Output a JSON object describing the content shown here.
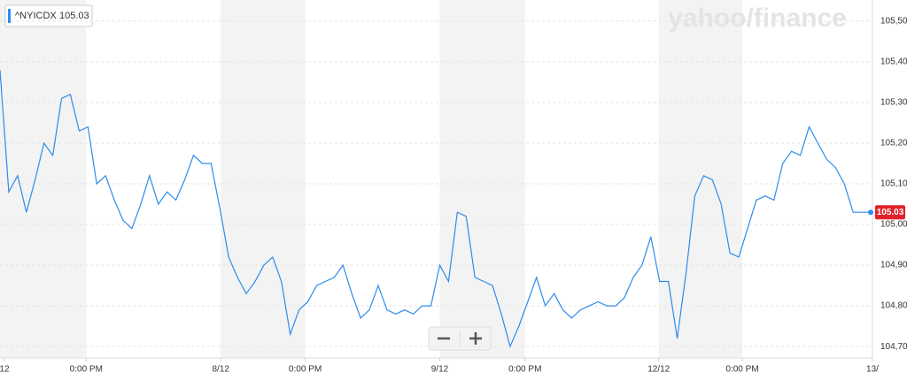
{
  "chart_data": {
    "type": "line",
    "watermark": "yahoo/finance",
    "last_price": 105.03,
    "series": [
      {
        "name": "^NYICDX",
        "color": "#2d8ceb",
        "values": [
          105.38,
          105.08,
          105.12,
          105.03,
          105.11,
          105.2,
          105.17,
          105.31,
          105.32,
          105.23,
          105.24,
          105.1,
          105.12,
          105.06,
          105.01,
          104.99,
          105.05,
          105.12,
          105.05,
          105.08,
          105.06,
          105.11,
          105.17,
          105.15,
          105.15,
          105.04,
          104.92,
          104.87,
          104.83,
          104.86,
          104.9,
          104.92,
          104.86,
          104.73,
          104.79,
          104.81,
          104.85,
          104.86,
          104.87,
          104.9,
          104.83,
          104.77,
          104.79,
          104.85,
          104.79,
          104.78,
          104.79,
          104.78,
          104.8,
          104.8,
          104.9,
          104.86,
          105.03,
          105.02,
          104.87,
          104.86,
          104.85,
          104.78,
          104.7,
          104.75,
          104.81,
          104.87,
          104.8,
          104.83,
          104.79,
          104.77,
          104.79,
          104.8,
          104.81,
          104.8,
          104.8,
          104.82,
          104.87,
          104.9,
          104.97,
          104.86,
          104.86,
          104.72,
          104.88,
          105.07,
          105.12,
          105.11,
          105.05,
          104.93,
          104.92,
          104.99,
          105.06,
          105.07,
          105.06,
          105.15,
          105.18,
          105.17,
          105.24,
          105.2,
          105.16,
          105.14,
          105.1,
          105.03,
          105.03,
          105.03
        ]
      }
    ],
    "xlim": [
      0,
      99.2
    ],
    "xticks": [
      {
        "value": 0.5,
        "label": "12"
      },
      {
        "value": 9.8,
        "label": "0:00 PM"
      },
      {
        "value": 25.1,
        "label": "8/12"
      },
      {
        "value": 34.7,
        "label": "0:00 PM"
      },
      {
        "value": 50,
        "label": "9/12"
      },
      {
        "value": 59.7,
        "label": "0:00 PM"
      },
      {
        "value": 74.9,
        "label": "12/12"
      },
      {
        "value": 84.4,
        "label": "0:00 PM"
      },
      {
        "value": 99.2,
        "label": "13/"
      }
    ],
    "ylim": [
      104.672,
      105.552
    ],
    "yticks": [
      {
        "value": 104.7,
        "label": "104,70"
      },
      {
        "value": 104.8,
        "label": "104,80"
      },
      {
        "value": 104.9,
        "label": "104,90"
      },
      {
        "value": 105.0,
        "label": "105,00"
      },
      {
        "value": 105.1,
        "label": "105,10"
      },
      {
        "value": 105.2,
        "label": "105,20"
      },
      {
        "value": 105.3,
        "label": "105,30"
      },
      {
        "value": 105.4,
        "label": "105,40"
      },
      {
        "value": 105.5,
        "label": "105,50"
      }
    ],
    "grid": true
  }
}
